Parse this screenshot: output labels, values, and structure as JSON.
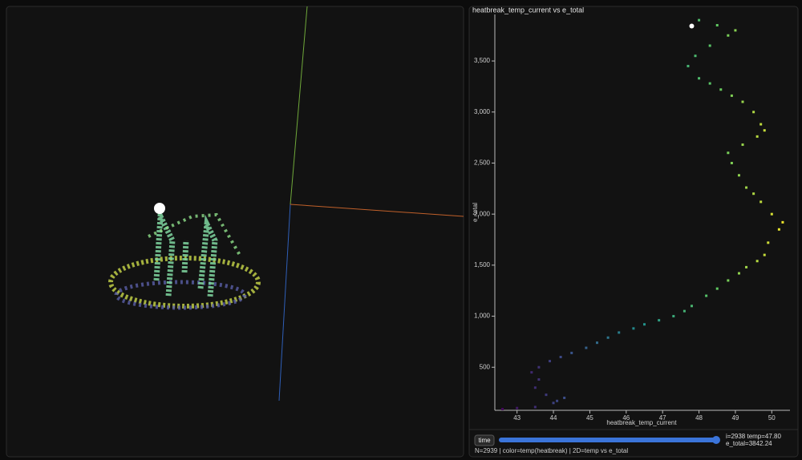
{
  "chart_data": {
    "type": "scatter",
    "title": "heatbreak_temp_current vs e_total",
    "x_label": "heatbreak_temp_current",
    "y_label": "e_total",
    "x": [
      42.6,
      43.0,
      43.5,
      44.0,
      44.3,
      44.1,
      43.8,
      43.5,
      43.6,
      43.4,
      43.6,
      43.9,
      44.2,
      44.5,
      44.9,
      45.2,
      45.5,
      45.8,
      46.2,
      46.5,
      46.9,
      47.3,
      47.6,
      47.8,
      48.2,
      48.5,
      48.8,
      49.1,
      49.3,
      49.6,
      49.8,
      49.9,
      50.2,
      50.3,
      50.0,
      49.7,
      49.5,
      49.3,
      49.1,
      48.9,
      48.8,
      49.2,
      49.6,
      49.8,
      49.7,
      49.5,
      49.2,
      48.9,
      48.6,
      48.3,
      48.0,
      47.7,
      47.9,
      48.3,
      48.8,
      49.0,
      48.5,
      48.0
    ],
    "values": [
      90,
      100,
      110,
      150,
      200,
      170,
      230,
      300,
      380,
      450,
      500,
      560,
      600,
      640,
      690,
      740,
      790,
      840,
      880,
      920,
      960,
      1000,
      1050,
      1100,
      1200,
      1270,
      1350,
      1420,
      1480,
      1540,
      1600,
      1720,
      1850,
      1920,
      2000,
      2120,
      2200,
      2260,
      2380,
      2500,
      2600,
      2680,
      2760,
      2820,
      2880,
      3000,
      3100,
      3160,
      3220,
      3280,
      3330,
      3450,
      3550,
      3650,
      3750,
      3800,
      3850,
      3900
    ],
    "colormap": [
      "#440154",
      "#3b528b",
      "#21918c",
      "#5ec962",
      "#fde725"
    ],
    "current": {
      "x": 47.8,
      "y": 3842.24,
      "color": "#ffffff"
    },
    "xlim": [
      42.39,
      50.5
    ],
    "ylim": [
      78,
      3956
    ],
    "xticks": [
      43,
      44,
      45,
      46,
      47,
      48,
      49,
      50
    ],
    "yticks": [
      500,
      {
        "value": 1000,
        "label": "1,000"
      },
      {
        "value": 1500,
        "label": "1,500"
      },
      {
        "value": 2000,
        "label": "2,000"
      },
      {
        "value": 2500,
        "label": "2,500"
      },
      {
        "value": 3000,
        "label": "3,000"
      },
      {
        "value": 3500,
        "label": "3,500"
      }
    ],
    "grid": false
  },
  "controls": {
    "button": "time",
    "readout": [
      "i=2938 temp=47.80",
      "e_total=3842.24"
    ],
    "status": "N=2939 | color=temp(heatbreak) | 2D=temp vs e_total"
  }
}
